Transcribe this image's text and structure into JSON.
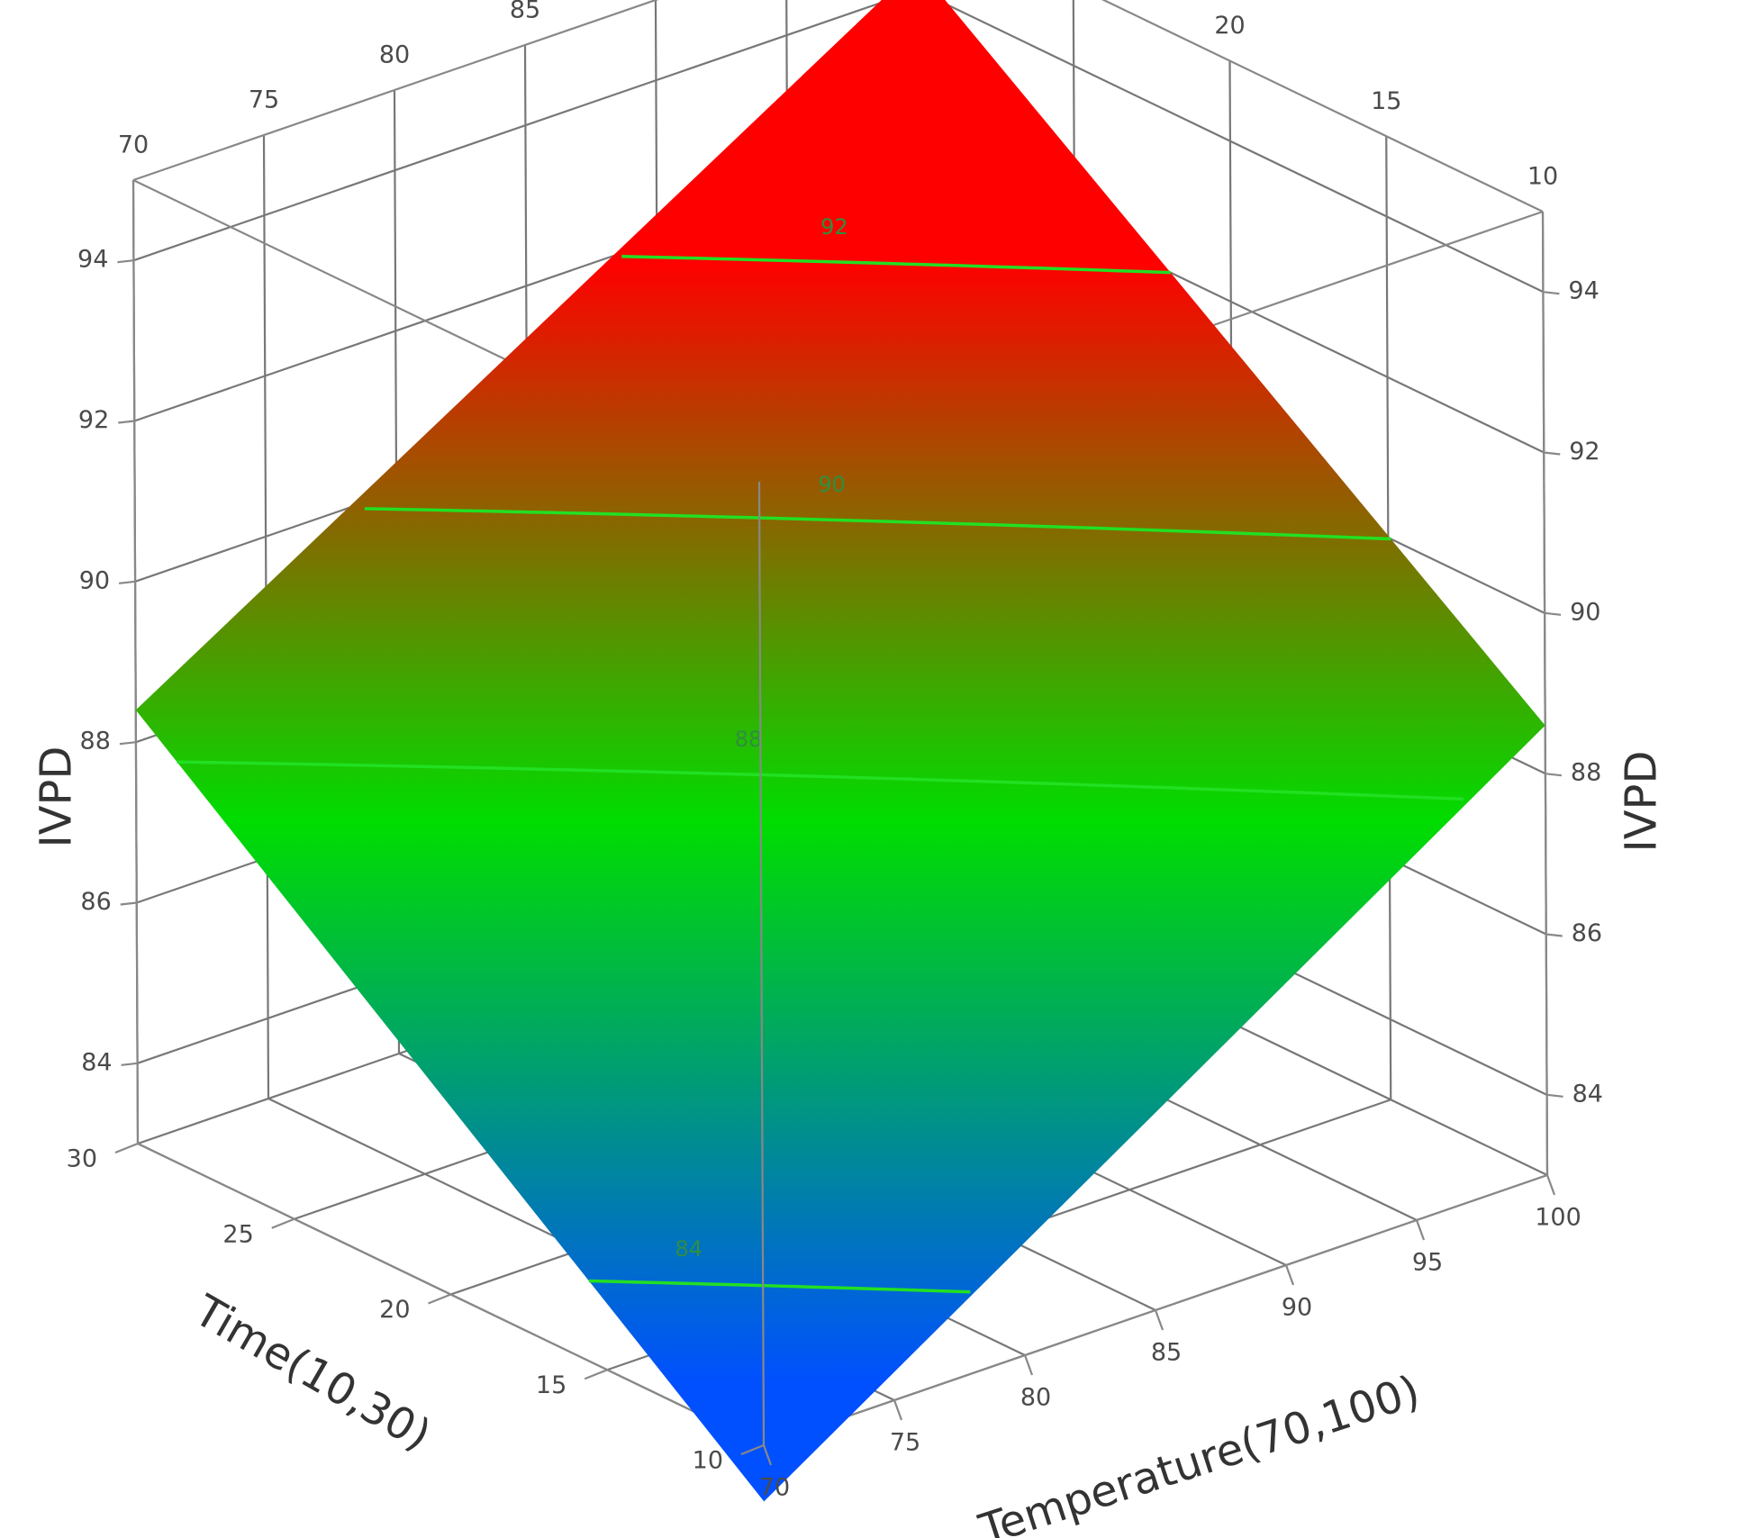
{
  "chart_data": {
    "type": "surface3d",
    "x_axis": {
      "label": "Temperature(70,100)",
      "ticks": [
        70,
        75,
        80,
        85,
        90,
        95,
        100
      ],
      "range": [
        70,
        100
      ]
    },
    "y_axis": {
      "label": "Time(10,30)",
      "ticks": [
        10,
        15,
        20,
        25,
        30
      ],
      "range": [
        10,
        30
      ]
    },
    "z_axis": {
      "label": "IVPD",
      "ticks": [
        84,
        86,
        88,
        90,
        92,
        94
      ],
      "range": [
        83,
        95
      ]
    },
    "surface": {
      "corners": [
        {
          "temperature": 70,
          "time": 10,
          "ivpd": 82.3
        },
        {
          "temperature": 100,
          "time": 10,
          "ivpd": 88.6
        },
        {
          "temperature": 70,
          "time": 30,
          "ivpd": 88.4
        },
        {
          "temperature": 100,
          "time": 30,
          "ivpd": 94.3
        }
      ],
      "colormap": [
        "#0050ff",
        "#00dd00",
        "#ff0000"
      ]
    },
    "contours": [
      84,
      88,
      90,
      92
    ],
    "grid": true
  }
}
